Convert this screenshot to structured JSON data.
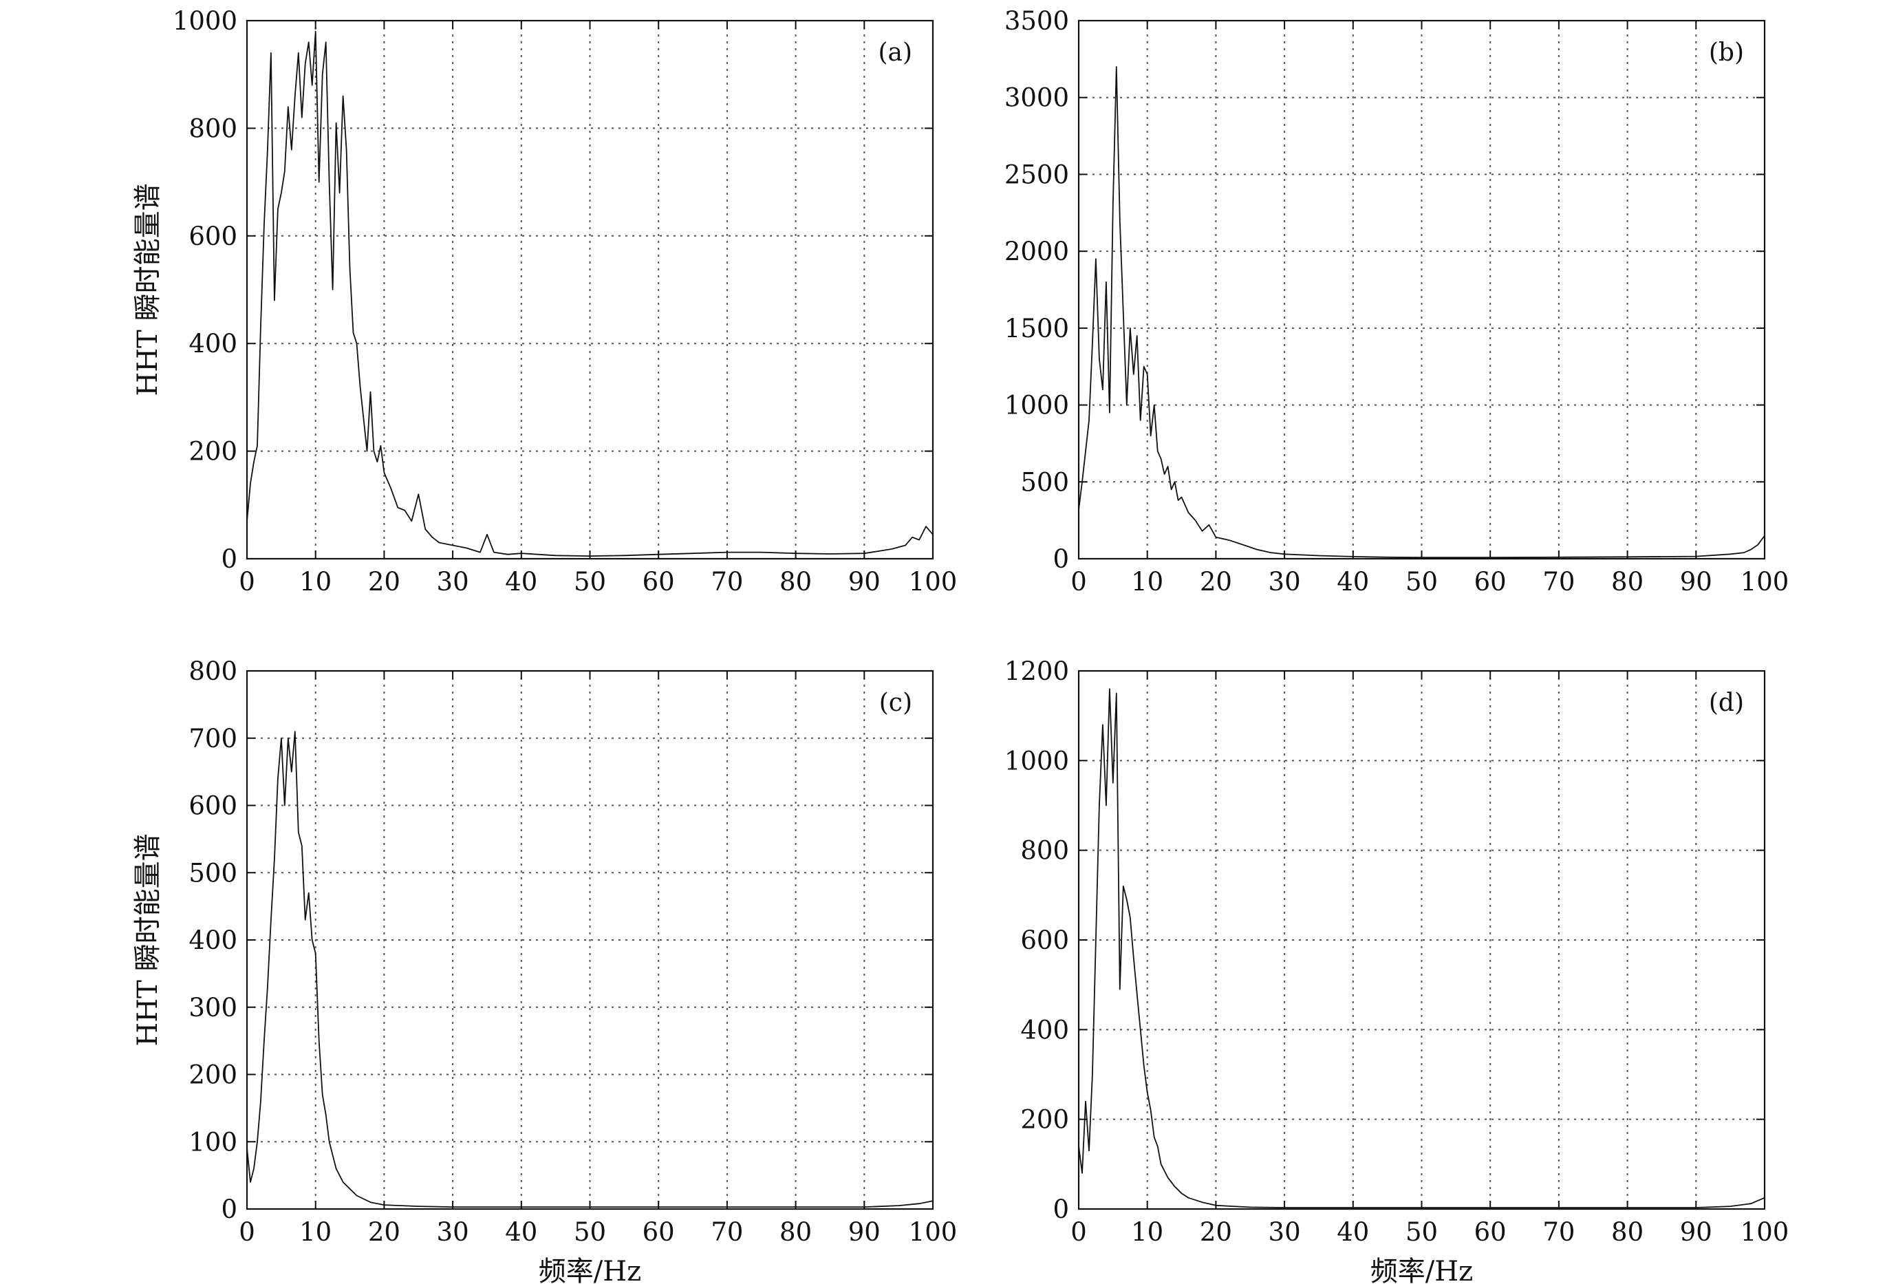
{
  "chart_data": [
    {
      "id": "a",
      "type": "line",
      "panel_label": "(a)",
      "xlabel": "",
      "ylabel": "HHT 瞬时能量谱",
      "xlim": [
        0,
        100
      ],
      "ylim": [
        0,
        1000
      ],
      "xticks": [
        0,
        10,
        20,
        30,
        40,
        50,
        60,
        70,
        80,
        90,
        100
      ],
      "yticks": [
        0,
        200,
        400,
        600,
        800,
        1000
      ],
      "grid": true,
      "series": [
        {
          "x": [
            0,
            0.5,
            1,
            1.5,
            2,
            2.5,
            3,
            3.5,
            4,
            4.5,
            5,
            5.5,
            6,
            6.5,
            7,
            7.5,
            8,
            8.5,
            9,
            9.5,
            10,
            10.5,
            11,
            11.5,
            12,
            12.5,
            13,
            13.5,
            14,
            14.5,
            15,
            15.5,
            16,
            16.5,
            17,
            17.5,
            18,
            18.5,
            19,
            19.5,
            20,
            21,
            22,
            23,
            24,
            25,
            26,
            27,
            28,
            30,
            32,
            34,
            35,
            36,
            38,
            40,
            45,
            50,
            55,
            60,
            65,
            70,
            75,
            80,
            85,
            90,
            92,
            94,
            96,
            97,
            98,
            99,
            100
          ],
          "y": [
            70,
            140,
            180,
            210,
            430,
            620,
            760,
            940,
            480,
            650,
            680,
            720,
            840,
            760,
            860,
            940,
            820,
            920,
            960,
            880,
            980,
            700,
            900,
            960,
            700,
            500,
            810,
            680,
            860,
            760,
            540,
            420,
            400,
            320,
            260,
            200,
            310,
            200,
            180,
            210,
            160,
            130,
            95,
            90,
            70,
            120,
            55,
            40,
            30,
            25,
            20,
            12,
            45,
            12,
            8,
            10,
            6,
            5,
            6,
            8,
            10,
            12,
            12,
            10,
            9,
            10,
            14,
            18,
            25,
            40,
            35,
            60,
            45
          ]
        }
      ]
    },
    {
      "id": "b",
      "type": "line",
      "panel_label": "(b)",
      "xlabel": "",
      "ylabel": "",
      "xlim": [
        0,
        100
      ],
      "ylim": [
        0,
        3500
      ],
      "xticks": [
        0,
        10,
        20,
        30,
        40,
        50,
        60,
        70,
        80,
        90,
        100
      ],
      "yticks": [
        0,
        500,
        1000,
        1500,
        2000,
        2500,
        3000,
        3500
      ],
      "grid": true,
      "series": [
        {
          "x": [
            0,
            0.5,
            1,
            1.5,
            2,
            2.5,
            3,
            3.5,
            4,
            4.5,
            5,
            5.5,
            6,
            6.5,
            7,
            7.5,
            8,
            8.5,
            9,
            9.5,
            10,
            10.5,
            11,
            11.5,
            12,
            12.5,
            13,
            13.5,
            14,
            14.5,
            15,
            16,
            17,
            18,
            19,
            20,
            22,
            24,
            26,
            28,
            30,
            35,
            40,
            45,
            50,
            60,
            70,
            80,
            90,
            95,
            97,
            98,
            99,
            100
          ],
          "y": [
            320,
            500,
            700,
            900,
            1400,
            1950,
            1300,
            1100,
            1800,
            950,
            2300,
            3200,
            2200,
            1600,
            1000,
            1500,
            1200,
            1450,
            900,
            1250,
            1200,
            800,
            1000,
            700,
            650,
            550,
            600,
            450,
            500,
            380,
            400,
            300,
            250,
            180,
            220,
            140,
            120,
            90,
            60,
            40,
            30,
            20,
            14,
            10,
            8,
            8,
            10,
            12,
            15,
            30,
            40,
            60,
            90,
            150
          ]
        }
      ]
    },
    {
      "id": "c",
      "type": "line",
      "panel_label": "(c)",
      "xlabel": "频率/Hz",
      "ylabel": "HHT 瞬时能量谱",
      "xlim": [
        0,
        100
      ],
      "ylim": [
        0,
        800
      ],
      "xticks": [
        0,
        10,
        20,
        30,
        40,
        50,
        60,
        70,
        80,
        90,
        100
      ],
      "yticks": [
        0,
        100,
        200,
        300,
        400,
        500,
        600,
        700,
        800
      ],
      "grid": true,
      "series": [
        {
          "x": [
            0,
            0.5,
            1,
            1.5,
            2,
            2.5,
            3,
            3.5,
            4,
            4.5,
            5,
            5.5,
            6,
            6.5,
            7,
            7.5,
            8,
            8.5,
            9,
            9.5,
            10,
            10.5,
            11,
            11.5,
            12,
            13,
            14,
            15,
            16,
            18,
            20,
            25,
            30,
            40,
            50,
            60,
            70,
            80,
            90,
            95,
            98,
            100
          ],
          "y": [
            90,
            40,
            60,
            100,
            160,
            250,
            330,
            430,
            520,
            640,
            700,
            600,
            700,
            650,
            710,
            560,
            540,
            430,
            470,
            400,
            380,
            250,
            170,
            140,
            100,
            60,
            40,
            30,
            20,
            10,
            6,
            4,
            3,
            3,
            3,
            3,
            3,
            3,
            3,
            5,
            8,
            12
          ]
        }
      ]
    },
    {
      "id": "d",
      "type": "line",
      "panel_label": "(d)",
      "xlabel": "频率/Hz",
      "ylabel": "",
      "xlim": [
        0,
        100
      ],
      "ylim": [
        0,
        1200
      ],
      "xticks": [
        0,
        10,
        20,
        30,
        40,
        50,
        60,
        70,
        80,
        90,
        100
      ],
      "yticks": [
        0,
        200,
        400,
        600,
        800,
        1000,
        1200
      ],
      "grid": true,
      "series": [
        {
          "x": [
            0,
            0.5,
            1,
            1.5,
            2,
            2.5,
            3,
            3.5,
            4,
            4.5,
            5,
            5.5,
            6,
            6.5,
            7,
            7.5,
            8,
            8.5,
            9,
            9.5,
            10,
            10.5,
            11,
            11.5,
            12,
            13,
            14,
            15,
            16,
            18,
            20,
            25,
            30,
            40,
            50,
            60,
            70,
            80,
            90,
            95,
            98,
            100
          ],
          "y": [
            140,
            80,
            240,
            130,
            300,
            600,
            900,
            1080,
            900,
            1160,
            950,
            1150,
            490,
            720,
            690,
            650,
            560,
            480,
            400,
            320,
            260,
            220,
            160,
            140,
            100,
            70,
            50,
            35,
            25,
            15,
            8,
            4,
            3,
            3,
            3,
            3,
            3,
            3,
            3,
            6,
            12,
            25
          ]
        }
      ]
    }
  ]
}
